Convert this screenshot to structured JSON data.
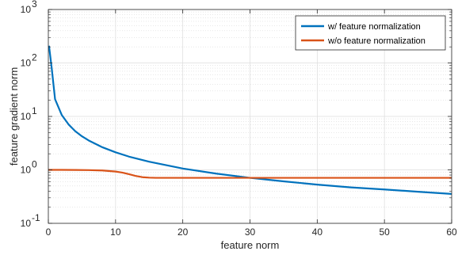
{
  "chart_data": {
    "type": "line",
    "xlabel": "feature norm",
    "ylabel": "feature gradient norm",
    "xlim": [
      0,
      60
    ],
    "ylim": [
      0.1,
      1000
    ],
    "y_scale": "log",
    "grid": true,
    "minor_grid": true,
    "legend_position": "top-right",
    "x_ticks": [
      0,
      10,
      20,
      30,
      40,
      50,
      60
    ],
    "y_ticks": [
      {
        "value": 0.1,
        "base": "10",
        "exp": "-1"
      },
      {
        "value": 1,
        "base": "10",
        "exp": "0"
      },
      {
        "value": 10,
        "base": "10",
        "exp": "1"
      },
      {
        "value": 100,
        "base": "10",
        "exp": "2"
      },
      {
        "value": 1000,
        "base": "10",
        "exp": "3"
      }
    ],
    "series": [
      {
        "name": "w/ feature normalization",
        "color": "#0072BD",
        "x": [
          0.1,
          0.5,
          1,
          2,
          3,
          4,
          5,
          6,
          8,
          10,
          12,
          15,
          20,
          25,
          30,
          35,
          40,
          45,
          50,
          55,
          60
        ],
        "y": [
          210,
          80,
          21,
          10.6,
          7.1,
          5.3,
          4.25,
          3.55,
          2.66,
          2.13,
          1.77,
          1.42,
          1.06,
          0.85,
          0.71,
          0.61,
          0.53,
          0.47,
          0.43,
          0.39,
          0.355
        ]
      },
      {
        "name": "w/o feature normalization",
        "color": "#D95319",
        "x": [
          0,
          2,
          4,
          6,
          8,
          10,
          11,
          12,
          13,
          14,
          15,
          16,
          20,
          30,
          40,
          50,
          60
        ],
        "y": [
          1.0,
          1.0,
          0.995,
          0.99,
          0.975,
          0.93,
          0.89,
          0.83,
          0.77,
          0.73,
          0.715,
          0.71,
          0.71,
          0.71,
          0.71,
          0.71,
          0.71
        ]
      }
    ]
  }
}
